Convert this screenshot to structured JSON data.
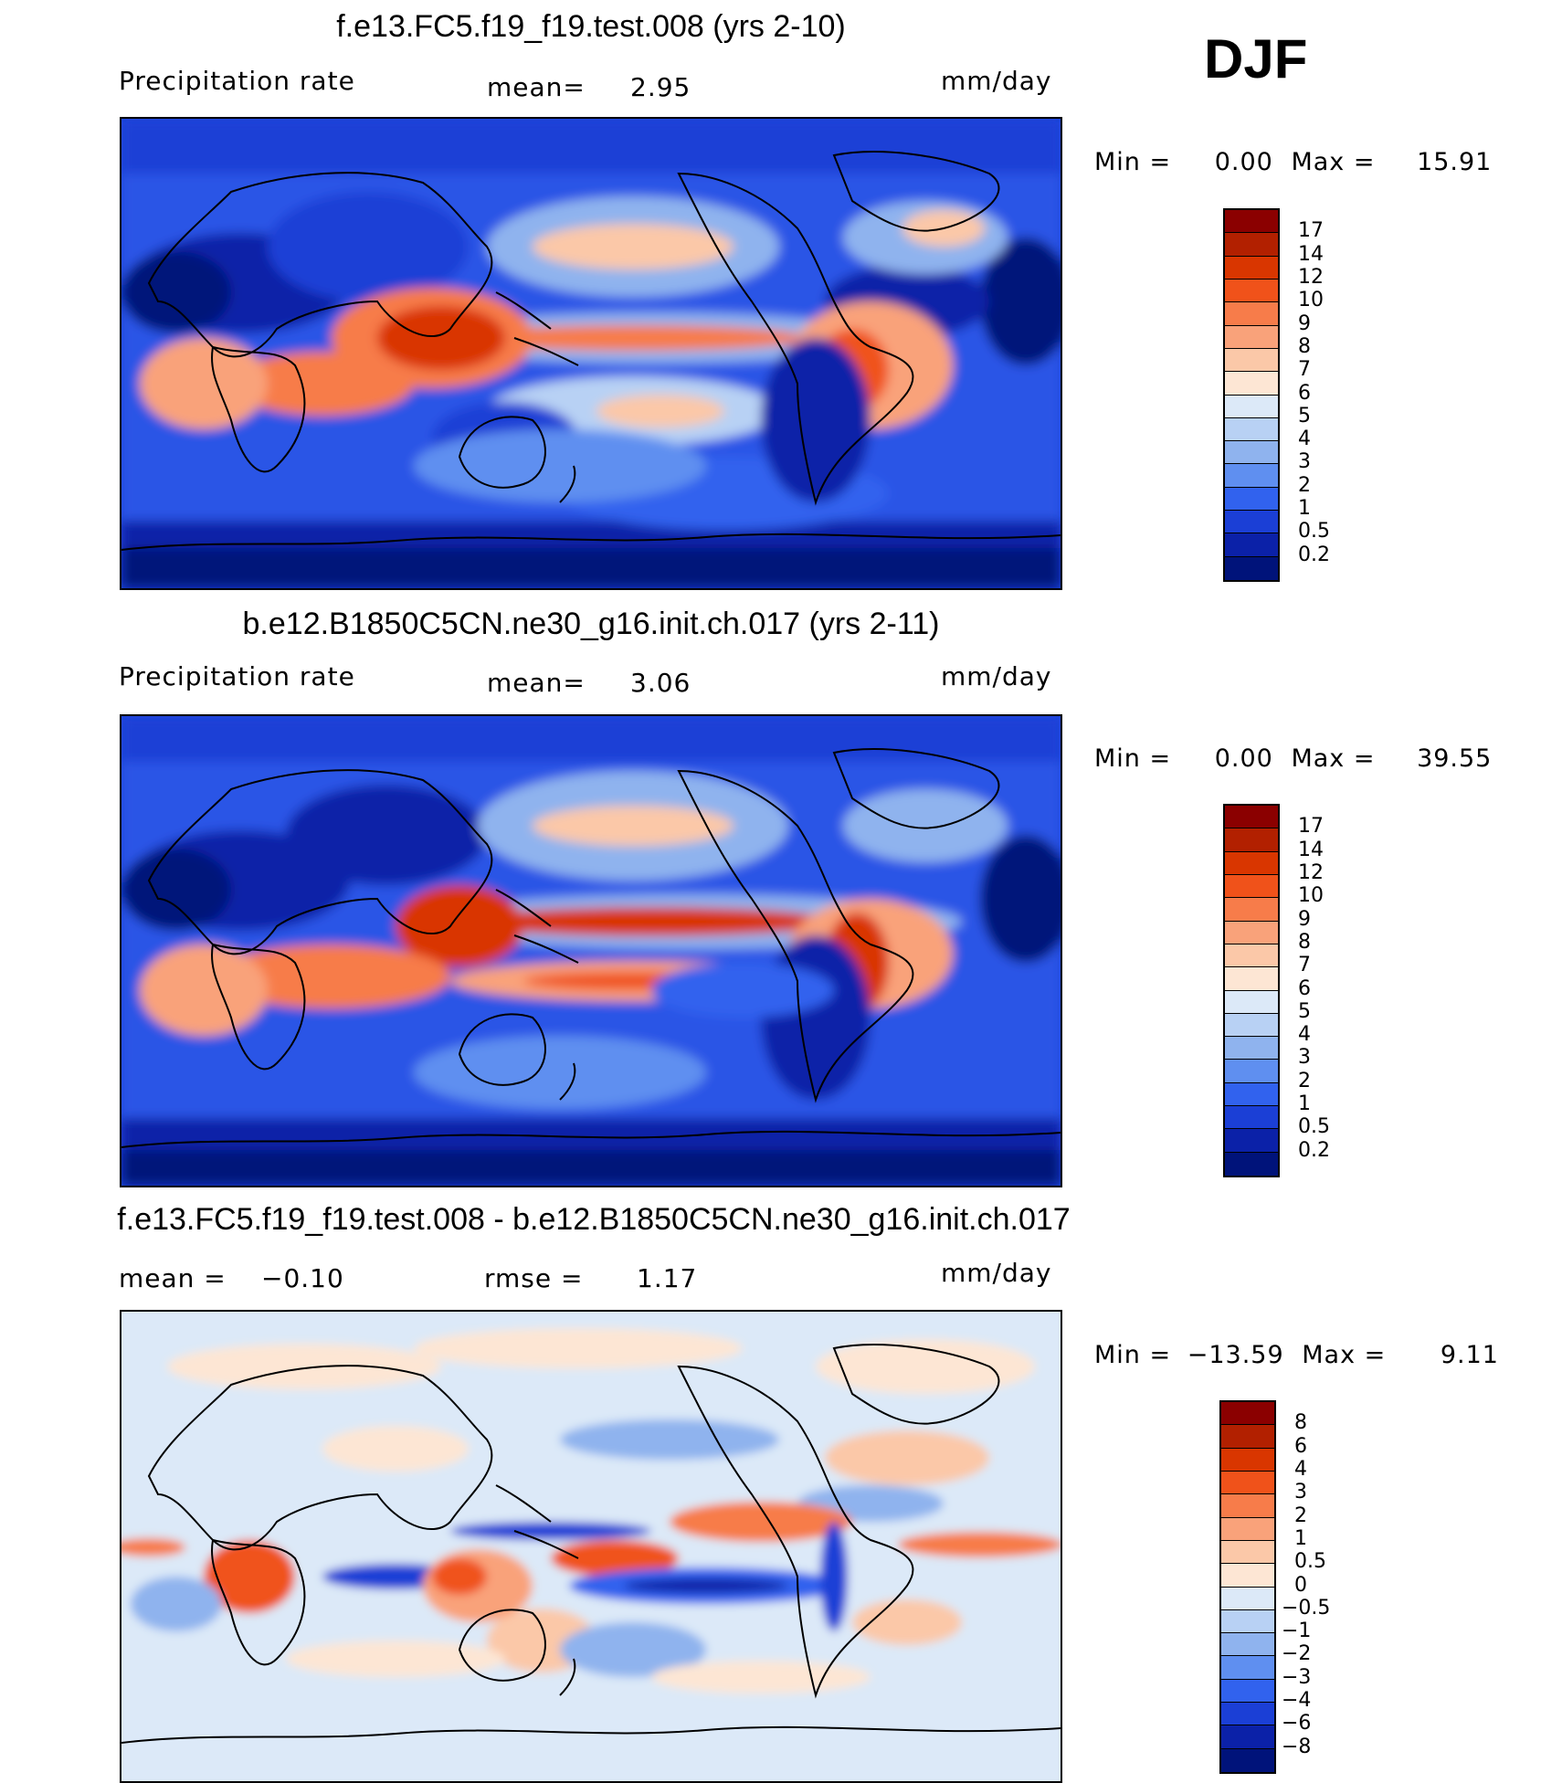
{
  "season": "DJF",
  "panels": [
    {
      "title": "f.e13.FC5.f19_f19.test.008 (yrs 2-10)",
      "left_label": "Precipitation  rate",
      "mid_label": "mean=",
      "mid_value": "2.95",
      "right_value": "",
      "units": "mm/day",
      "min_label": "Min  =",
      "min_value": "0.00",
      "max_label": "Max  =",
      "max_value": "15.91",
      "colorbar_ticks": [
        "17",
        "14",
        "12",
        "10",
        "9",
        "8",
        "7",
        "6",
        "5",
        "4",
        "3",
        "2",
        "1",
        "0.5",
        "0.2"
      ]
    },
    {
      "title": "b.e12.B1850C5CN.ne30_g16.init.ch.017 (yrs 2-11)",
      "left_label": "Precipitation  rate",
      "mid_label": "mean=",
      "mid_value": "3.06",
      "right_value": "",
      "units": "mm/day",
      "min_label": "Min  =",
      "min_value": "0.00",
      "max_label": "Max  =",
      "max_value": "39.55",
      "colorbar_ticks": [
        "17",
        "14",
        "12",
        "10",
        "9",
        "8",
        "7",
        "6",
        "5",
        "4",
        "3",
        "2",
        "1",
        "0.5",
        "0.2"
      ]
    },
    {
      "title": "f.e13.FC5.f19_f19.test.008 - b.e12.B1850C5CN.ne30_g16.init.ch.017",
      "left_label": "mean  =",
      "mid_label": "rmse  =",
      "mid_value": "1.17",
      "left_value": "−0.10",
      "units": "mm/day",
      "min_label": "Min  =",
      "min_value": "−13.59",
      "max_label": "Max  =",
      "max_value": "9.11",
      "colorbar_ticks": [
        "8",
        "6",
        "4",
        "3",
        "2",
        "1",
        "0.5",
        "0",
        "−0.5",
        "−1",
        "−2",
        "−3",
        "−4",
        "−6",
        "−8"
      ]
    }
  ],
  "colors": {
    "precip_scale": [
      "#8b0000",
      "#b22000",
      "#d93600",
      "#f0521a",
      "#f77c4a",
      "#f9a27a",
      "#fbc8a8",
      "#fde6d4",
      "#dce9f8",
      "#b8d1f4",
      "#8fb3ee",
      "#5f8ff0",
      "#3162ee",
      "#1b3fd6",
      "#0b21a8",
      "#00137a"
    ],
    "diff_scale": [
      "#8b0000",
      "#b22000",
      "#d93600",
      "#f0521a",
      "#f77c4a",
      "#f9a27a",
      "#fbc8a8",
      "#fde6d4",
      "#dce9f8",
      "#b8d1f4",
      "#8fb3ee",
      "#5f8ff0",
      "#3162ee",
      "#1b3fd6",
      "#0b21a8",
      "#00137a"
    ]
  }
}
